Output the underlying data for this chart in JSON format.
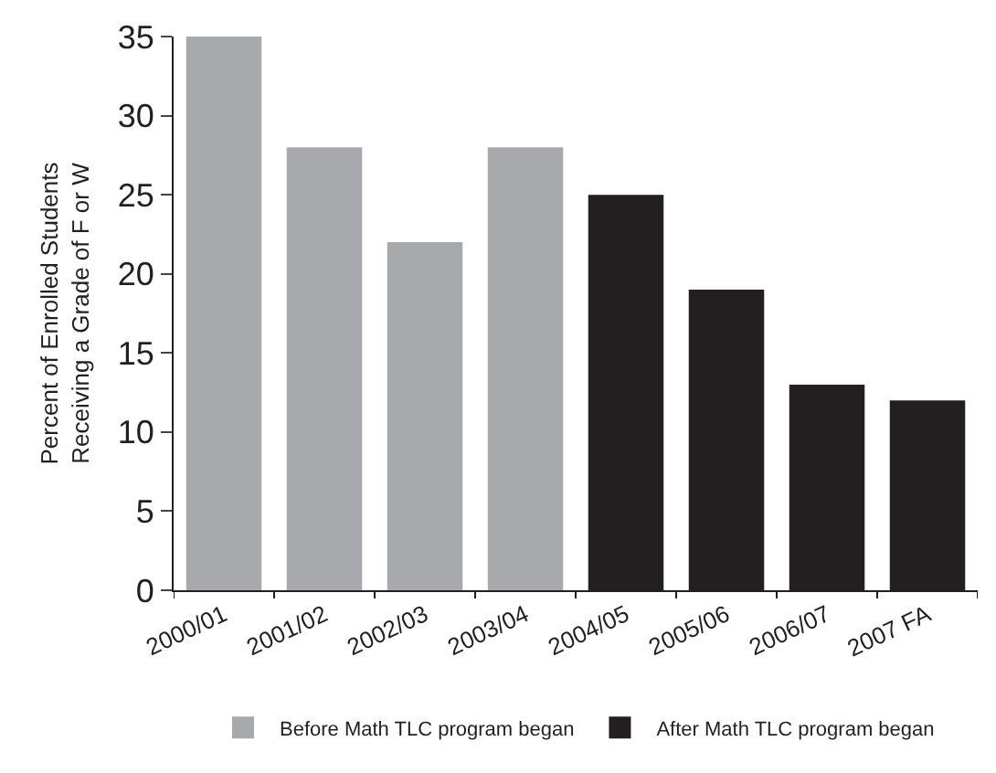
{
  "chart_data": {
    "type": "bar",
    "ylabel": "Percent of Enrolled Students\nReceiving a Grade of F or W",
    "categories": [
      "2000/01",
      "2001/02",
      "2002/03",
      "2003/04",
      "2004/05",
      "2005/06",
      "2006/07",
      "2007 FA"
    ],
    "series": [
      {
        "name": "Before Math TLC program began",
        "color": "#a7a9ac",
        "values": [
          35,
          28,
          22,
          28,
          null,
          null,
          null,
          null
        ]
      },
      {
        "name": "After Math TLC program began",
        "color": "#231f20",
        "values": [
          null,
          null,
          null,
          null,
          25,
          19,
          13,
          12
        ]
      }
    ],
    "ylim": [
      0,
      35
    ],
    "yticks": [
      0,
      5,
      10,
      15,
      20,
      25,
      30,
      35
    ],
    "legend": "bottom"
  }
}
